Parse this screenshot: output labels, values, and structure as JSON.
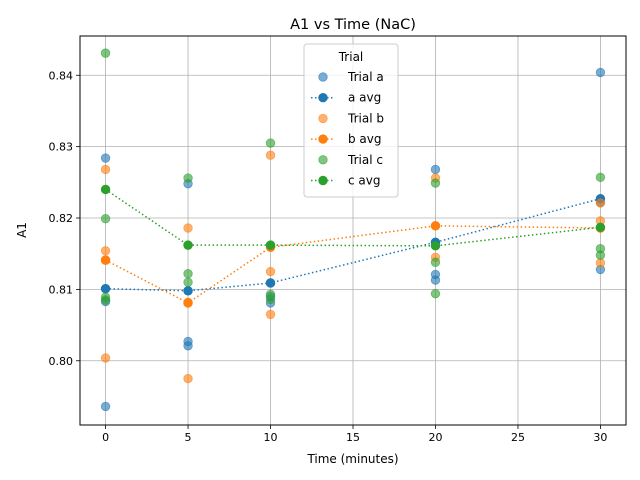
{
  "chart_data": {
    "type": "scatter",
    "title": "A1 vs Time (NaC)",
    "xlabel": "Time (minutes)",
    "ylabel": "A1",
    "xlim": [
      -1.55,
      31.55
    ],
    "ylim": [
      0.791,
      0.8455
    ],
    "x_ticks": [
      0,
      5,
      10,
      15,
      20,
      25,
      30
    ],
    "x_tick_labels": [
      "0",
      "5",
      "10",
      "15",
      "20",
      "25",
      "30"
    ],
    "y_ticks": [
      0.8,
      0.81,
      0.82,
      0.83,
      0.84
    ],
    "y_tick_labels": [
      "0.80",
      "0.81",
      "0.82",
      "0.83",
      "0.84"
    ],
    "grid": true,
    "legend": {
      "title": "Trial",
      "placement": "top-center",
      "entries": [
        {
          "label": "Trial a",
          "kind": "points",
          "series": 0
        },
        {
          "label": "a avg",
          "kind": "line",
          "series": 0
        },
        {
          "label": "Trial b",
          "kind": "points",
          "series": 1
        },
        {
          "label": "b avg",
          "kind": "line",
          "series": 1
        },
        {
          "label": "Trial c",
          "kind": "points",
          "series": 2
        },
        {
          "label": "c avg",
          "kind": "line",
          "series": 2
        }
      ]
    },
    "series": [
      {
        "name": "Trial a",
        "avg_name": "a avg",
        "color": "#1f77b4",
        "points": [
          [
            0,
            0.8284
          ],
          [
            0,
            0.8101
          ],
          [
            0,
            0.8083
          ],
          [
            0,
            0.7936
          ],
          [
            5,
            0.8248
          ],
          [
            5,
            0.8098
          ],
          [
            5,
            0.8027
          ],
          [
            5,
            0.8021
          ],
          [
            10,
            0.8109
          ],
          [
            10,
            0.809
          ],
          [
            10,
            0.8081
          ],
          [
            20,
            0.8268
          ],
          [
            20,
            0.8166
          ],
          [
            20,
            0.8121
          ],
          [
            20,
            0.8113
          ],
          [
            30,
            0.8404
          ],
          [
            30,
            0.8222
          ],
          [
            30,
            0.8128
          ]
        ],
        "avg": [
          [
            0,
            0.8101
          ],
          [
            5,
            0.8098
          ],
          [
            10,
            0.8109
          ],
          [
            20,
            0.8166
          ],
          [
            30,
            0.8227
          ]
        ]
      },
      {
        "name": "Trial b",
        "avg_name": "b avg",
        "color": "#ff7f0e",
        "points": [
          [
            0,
            0.8268
          ],
          [
            0,
            0.8154
          ],
          [
            0,
            0.8141
          ],
          [
            0,
            0.8004
          ],
          [
            5,
            0.8186
          ],
          [
            5,
            0.8082
          ],
          [
            5,
            0.7975
          ],
          [
            10,
            0.8288
          ],
          [
            10,
            0.8125
          ],
          [
            10,
            0.8065
          ],
          [
            20,
            0.8256
          ],
          [
            20,
            0.8189
          ],
          [
            20,
            0.8145
          ],
          [
            30,
            0.8221
          ],
          [
            30,
            0.8196
          ],
          [
            30,
            0.8137
          ]
        ],
        "avg": [
          [
            0,
            0.8141
          ],
          [
            5,
            0.8081
          ],
          [
            10,
            0.8159
          ],
          [
            20,
            0.8189
          ],
          [
            30,
            0.8186
          ]
        ]
      },
      {
        "name": "Trial c",
        "avg_name": "c avg",
        "color": "#2ca02c",
        "points": [
          [
            0,
            0.8431
          ],
          [
            0,
            0.8199
          ],
          [
            0,
            0.8089
          ],
          [
            0,
            0.8085
          ],
          [
            5,
            0.8256
          ],
          [
            5,
            0.8122
          ],
          [
            5,
            0.811
          ],
          [
            10,
            0.8305
          ],
          [
            10,
            0.8093
          ],
          [
            10,
            0.8086
          ],
          [
            20,
            0.8249
          ],
          [
            20,
            0.8138
          ],
          [
            20,
            0.8094
          ],
          [
            30,
            0.8257
          ],
          [
            30,
            0.8157
          ],
          [
            30,
            0.8148
          ]
        ],
        "avg": [
          [
            0,
            0.824
          ],
          [
            5,
            0.8162
          ],
          [
            10,
            0.8162
          ],
          [
            20,
            0.8161
          ],
          [
            30,
            0.8187
          ]
        ]
      }
    ]
  }
}
